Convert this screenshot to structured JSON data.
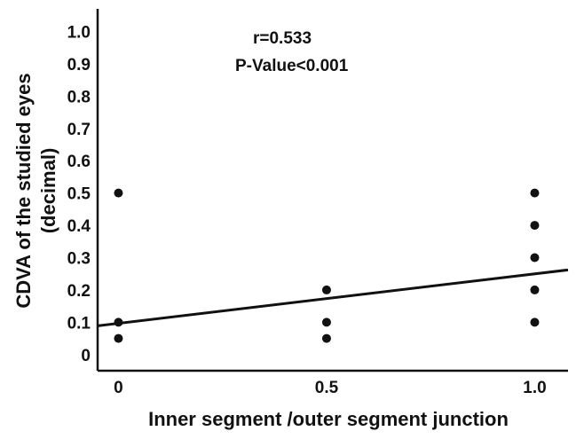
{
  "chart_data": {
    "type": "scatter",
    "title": "",
    "xlabel": "Inner segment /outer segment junction",
    "ylabel_lines": [
      "CDVA of the studied eyes",
      "(decimal)"
    ],
    "x_ticks": [
      "0",
      "0.5",
      "1.0"
    ],
    "y_ticks": [
      "0",
      "0.1",
      "0.2",
      "0.3",
      "0.4",
      "0.5",
      "0.6",
      "0.7",
      "0.8",
      "0.9",
      "1.0"
    ],
    "xlim": [
      -0.05,
      1.08
    ],
    "ylim": [
      -0.05,
      1.07
    ],
    "grid": false,
    "points": [
      {
        "x": 0,
        "y": 0.5
      },
      {
        "x": 0,
        "y": 0.1
      },
      {
        "x": 0,
        "y": 0.05
      },
      {
        "x": 0.5,
        "y": 0.2
      },
      {
        "x": 0.5,
        "y": 0.1
      },
      {
        "x": 0.5,
        "y": 0.05
      },
      {
        "x": 1.0,
        "y": 0.5
      },
      {
        "x": 1.0,
        "y": 0.4
      },
      {
        "x": 1.0,
        "y": 0.3
      },
      {
        "x": 1.0,
        "y": 0.2
      },
      {
        "x": 1.0,
        "y": 0.1
      }
    ],
    "fit_line": {
      "x": [
        -0.05,
        1.08
      ],
      "y": [
        0.089,
        0.262
      ]
    },
    "annotations": [
      "r=0.533",
      "P-Value<0.001"
    ]
  }
}
